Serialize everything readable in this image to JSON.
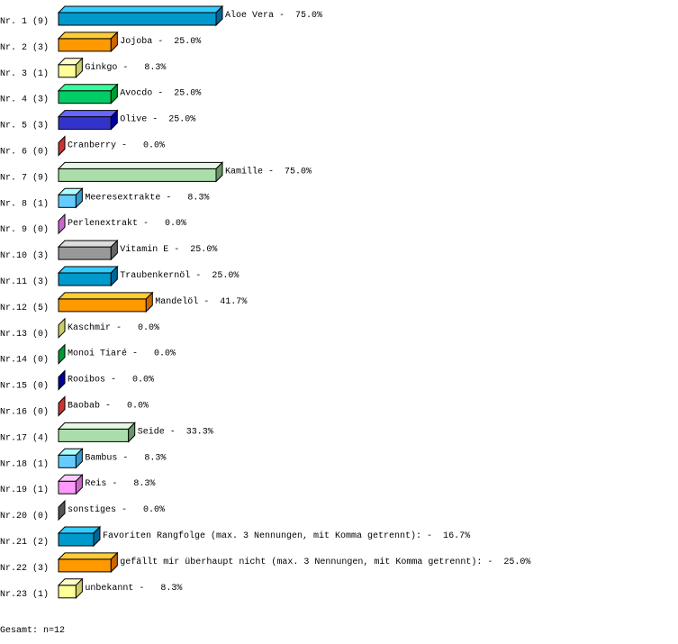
{
  "chart_data": {
    "type": "bar",
    "orientation": "horizontal",
    "style": "3d",
    "xlim": [
      0,
      75
    ],
    "grid": false,
    "categories": [
      "Nr. 1 (9)",
      "Nr. 2 (3)",
      "Nr. 3 (1)",
      "Nr. 4 (3)",
      "Nr. 5 (3)",
      "Nr. 6 (0)",
      "Nr. 7 (9)",
      "Nr. 8 (1)",
      "Nr. 9 (0)",
      "Nr.10 (3)",
      "Nr.11 (3)",
      "Nr.12 (5)",
      "Nr.13 (0)",
      "Nr.14 (0)",
      "Nr.15 (0)",
      "Nr.16 (0)",
      "Nr.17 (4)",
      "Nr.18 (1)",
      "Nr.19 (1)",
      "Nr.20 (0)",
      "Nr.21 (2)",
      "Nr.22 (3)",
      "Nr.23 (1)"
    ],
    "names": [
      "Aloe Vera",
      "Jojoba",
      "Ginkgo",
      "Avocdo",
      "Olive",
      "Cranberry",
      "Kamille",
      "Meeresextrakte",
      "Perlenextrakt",
      "Vitamin E",
      "Traubenkernöl",
      "Mandelöl",
      "Kaschmir",
      "Monoi Tiaré",
      "Rooibos",
      "Baobab",
      "Seide",
      "Bambus",
      "Reis",
      "sonstiges",
      "Favoriten Rangfolge (max. 3 Nennungen, mit Komma getrennt):",
      "gefällt mir überhaupt nicht (max. 3 Nennungen, mit Komma getrennt):",
      "unbekannt"
    ],
    "counts": [
      9,
      3,
      1,
      3,
      3,
      0,
      9,
      1,
      0,
      3,
      3,
      5,
      0,
      0,
      0,
      0,
      4,
      1,
      1,
      0,
      2,
      3,
      1
    ],
    "values": [
      75.0,
      25.0,
      8.3,
      25.0,
      25.0,
      0.0,
      75.0,
      8.3,
      0.0,
      25.0,
      25.0,
      41.7,
      0.0,
      0.0,
      0.0,
      0.0,
      33.3,
      8.3,
      8.3,
      0.0,
      16.7,
      25.0,
      8.3
    ],
    "value_labels": [
      "75.0%",
      "25.0%",
      "8.3%",
      "25.0%",
      "25.0%",
      "0.0%",
      "75.0%",
      "8.3%",
      "0.0%",
      "25.0%",
      "25.0%",
      "41.7%",
      "0.0%",
      "0.0%",
      "0.0%",
      "0.0%",
      "33.3%",
      "8.3%",
      "8.3%",
      "0.0%",
      "16.7%",
      "25.0%",
      "8.3%"
    ],
    "colors": [
      [
        "#0099cc",
        "#33ccff",
        "#006699"
      ],
      [
        "#ff9900",
        "#ffcc33",
        "#cc6600"
      ],
      [
        "#ffff99",
        "#ffffcc",
        "#cccc66"
      ],
      [
        "#00cc66",
        "#33ff99",
        "#009933"
      ],
      [
        "#3333cc",
        "#6666ff",
        "#000099"
      ],
      [
        "#cc3333",
        "#ff6666",
        "#cc3333"
      ],
      [
        "#aaddaa",
        "#e6f7e6",
        "#669966"
      ],
      [
        "#66ccff",
        "#aaffff",
        "#3399cc"
      ],
      [
        "#cc66cc",
        "#ff99ff",
        "#cc66cc"
      ],
      [
        "#999999",
        "#dddddd",
        "#666666"
      ],
      [
        "#0099cc",
        "#33ccff",
        "#006699"
      ],
      [
        "#ff9900",
        "#ffcc33",
        "#cc6600"
      ],
      [
        "#cccc66",
        "#ffff99",
        "#cccc66"
      ],
      [
        "#009933",
        "#00cc66",
        "#009933"
      ],
      [
        "#000099",
        "#3333cc",
        "#000099"
      ],
      [
        "#cc3333",
        "#ff6666",
        "#cc3333"
      ],
      [
        "#aaddaa",
        "#e6f7e6",
        "#669966"
      ],
      [
        "#66ccff",
        "#aaffff",
        "#3399cc"
      ],
      [
        "#ff99ff",
        "#ffccff",
        "#cc66cc"
      ],
      [
        "#555555",
        "#888888",
        "#555555"
      ],
      [
        "#0099cc",
        "#33ccff",
        "#006699"
      ],
      [
        "#ff9900",
        "#ffcc33",
        "#cc6600"
      ],
      [
        "#ffff99",
        "#ffffcc",
        "#cccc66"
      ]
    ]
  },
  "footer": {
    "total": "Gesamt: n=12"
  }
}
